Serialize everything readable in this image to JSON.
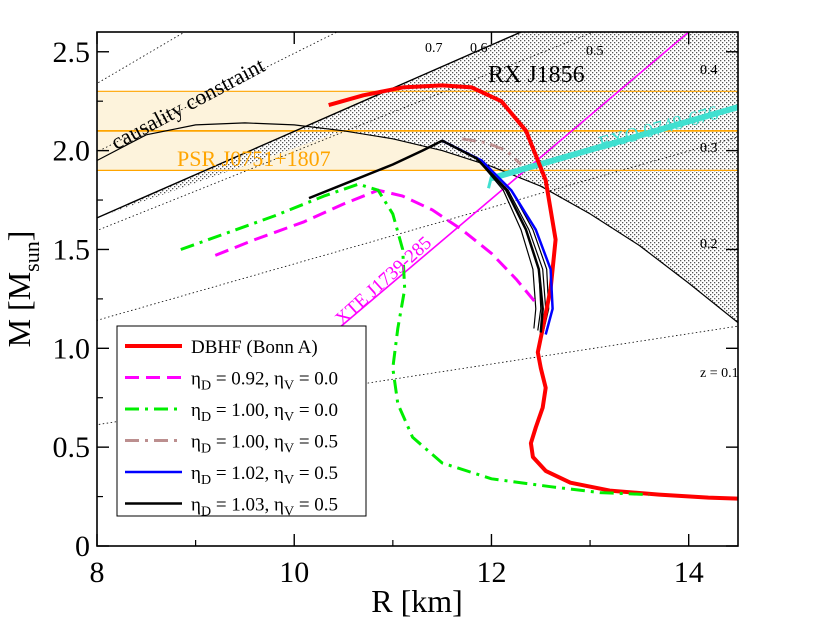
{
  "chart_data": {
    "type": "line",
    "xlabel": "R [km]",
    "ylabel": "M  [M",
    "ylabel_sub": "sun",
    "ylabel_close": "]",
    "xlim": [
      8,
      14.5
    ],
    "ylim": [
      0,
      2.6
    ],
    "xticks": [
      8,
      10,
      12,
      14
    ],
    "xtick_labels": [
      "8",
      "10",
      "12",
      "14"
    ],
    "yticks": [
      0,
      0.5,
      1.0,
      1.5,
      2.0,
      2.5
    ],
    "ytick_labels": [
      "0",
      "0.5",
      "1.0",
      "1.5",
      "2.0",
      "2.5"
    ],
    "grid": false,
    "legend_position": "bottom-left",
    "series": [
      {
        "name": "DBHF (Bonn A)",
        "color": "#ff0000",
        "style": "solid",
        "label_html": [
          "DBHF (Bonn A)"
        ],
        "x": [
          10.35,
          10.7,
          11.1,
          11.5,
          11.8,
          12.1,
          12.35,
          12.55,
          12.65,
          12.6,
          12.52,
          12.47,
          12.5,
          12.55,
          12.52,
          12.45,
          12.4,
          12.42,
          12.55,
          12.8,
          13.2,
          13.7,
          14.2,
          14.5
        ],
        "y": [
          2.23,
          2.28,
          2.32,
          2.33,
          2.32,
          2.25,
          2.1,
          1.85,
          1.55,
          1.3,
          1.1,
          0.98,
          0.9,
          0.8,
          0.7,
          0.6,
          0.52,
          0.45,
          0.38,
          0.32,
          0.28,
          0.26,
          0.245,
          0.24
        ]
      },
      {
        "name": "ηD = 0.92, ηV = 0.0",
        "color": "#ff00ff",
        "style": "dashed",
        "label_parts": [
          "η",
          "D",
          " = 0.92, η",
          "V",
          " = 0.0"
        ],
        "x": [
          9.2,
          9.6,
          10.1,
          10.5,
          10.85,
          11.1,
          11.4,
          11.7,
          12.0,
          12.25,
          12.45
        ],
        "y": [
          1.47,
          1.55,
          1.64,
          1.73,
          1.8,
          1.77,
          1.7,
          1.6,
          1.48,
          1.35,
          1.23
        ]
      },
      {
        "name": "ηD = 1.00, ηV = 0.0",
        "color": "#00ee00",
        "style": "dashdot",
        "label_parts": [
          "η",
          "D",
          " = 1.00, η",
          "V",
          " = 0.0"
        ],
        "x": [
          8.85,
          9.3,
          9.8,
          10.3,
          10.65,
          10.85,
          11.0,
          11.1,
          11.12,
          11.05,
          11.0,
          11.05,
          11.2,
          11.5,
          12.0,
          12.6,
          13.1,
          13.6
        ],
        "y": [
          1.5,
          1.58,
          1.67,
          1.77,
          1.83,
          1.8,
          1.68,
          1.5,
          1.3,
          1.1,
          0.9,
          0.72,
          0.55,
          0.42,
          0.34,
          0.3,
          0.27,
          0.26
        ]
      },
      {
        "name": "ηD = 1.00, ηV = 0.5",
        "color": "#bc8f8f",
        "style": "dashdot",
        "label_parts": [
          "η",
          "D",
          " = 1.00, η",
          "V",
          " = 0.5"
        ],
        "x": [
          11.7,
          11.95,
          12.15,
          12.3
        ],
        "y": [
          2.06,
          2.04,
          2.0,
          1.93
        ]
      },
      {
        "name": "ηD = 1.02, ηV = 0.5",
        "color": "#0000ff",
        "style": "solid",
        "label_parts": [
          "η",
          "D",
          " = 1.02, η",
          "V",
          " = 0.5"
        ],
        "x": [
          11.5,
          11.9,
          12.2,
          12.45,
          12.6,
          12.62,
          12.55
        ],
        "y": [
          2.05,
          1.95,
          1.8,
          1.6,
          1.4,
          1.2,
          1.07
        ]
      },
      {
        "name": "ηD = 1.03, ηV = 0.5",
        "color": "#000000",
        "style": "solid",
        "label_parts": [
          "η",
          "D",
          " = 1.03, η",
          "V",
          " = 0.5"
        ],
        "x": [
          10.15,
          10.6,
          11.0,
          11.3,
          11.5,
          11.85,
          12.15,
          12.35,
          12.48,
          12.52,
          12.5
        ],
        "y": [
          1.76,
          1.85,
          1.93,
          2.0,
          2.05,
          1.96,
          1.8,
          1.6,
          1.4,
          1.2,
          1.08
        ]
      }
    ],
    "extra_mr_curves": {
      "color": "#000000",
      "curves": [
        {
          "x": [
            11.5,
            11.85,
            12.12,
            12.3,
            12.42,
            12.45,
            12.43
          ],
          "y": [
            2.05,
            1.96,
            1.8,
            1.6,
            1.4,
            1.2,
            1.1
          ]
        },
        {
          "x": [
            11.5,
            11.87,
            12.15,
            12.35,
            12.48,
            12.5,
            12.47
          ],
          "y": [
            2.05,
            1.96,
            1.8,
            1.6,
            1.4,
            1.2,
            1.09
          ]
        },
        {
          "x": [
            11.5,
            11.88,
            12.17,
            12.38,
            12.52,
            12.55,
            12.5
          ],
          "y": [
            2.05,
            1.95,
            1.8,
            1.6,
            1.4,
            1.2,
            1.08
          ]
        },
        {
          "x": [
            11.5,
            11.9,
            12.2,
            12.42,
            12.56,
            12.58,
            12.52
          ],
          "y": [
            2.05,
            1.95,
            1.8,
            1.6,
            1.4,
            1.2,
            1.07
          ]
        }
      ]
    },
    "constraints": {
      "causality": {
        "label": "causality constraint",
        "x": [
          8,
          12.3
        ],
        "y": [
          1.66,
          2.6
        ]
      },
      "max_mass_curve": {
        "x": [
          8,
          8.5,
          9.0,
          9.5,
          10.0,
          10.5,
          11.0,
          11.5,
          12.0,
          12.5,
          13.0,
          13.5,
          14.0,
          14.5
        ],
        "y": [
          1.95,
          2.08,
          2.13,
          2.14,
          2.13,
          2.1,
          2.06,
          2.0,
          1.92,
          1.82,
          1.68,
          1.52,
          1.33,
          1.13
        ]
      },
      "psr_band": {
        "label": "PSR J0751+1807",
        "y_low": 1.9,
        "y_mid": 2.1,
        "y_high": 2.3,
        "color": "#ffa500",
        "fill": "#fdf3dc"
      },
      "rx_j1856": {
        "label": "RX J1856",
        "color": "#000000"
      },
      "xte": {
        "label": "XTE J1739-285",
        "color": "#ff00ff",
        "x": [
          10.4,
          14.0
        ],
        "y": [
          1.08,
          2.6
        ]
      },
      "exo": {
        "label": "EXO 0748-676",
        "color": "#40e0d0",
        "x": [
          12.0,
          14.5
        ],
        "y": [
          1.86,
          2.22
        ]
      },
      "redshift_lines": {
        "color": "#000000",
        "lines": [
          {
            "z": 0.1,
            "slope": 0.0767
          },
          {
            "z": 0.2,
            "slope": 0.1427
          },
          {
            "z": 0.3,
            "slope": 0.1995
          },
          {
            "z": 0.4,
            "slope": 0.2492
          },
          {
            "z": 0.5,
            "slope": 0.2925
          },
          {
            "z": 0.6,
            "slope": 0.3311
          },
          {
            "z": 0.7,
            "slope": 0.3656
          }
        ],
        "labels": [
          "z = 0.1",
          "0.2",
          "0.3",
          "0.4",
          "0.5",
          "0.6",
          "0.7"
        ]
      }
    }
  }
}
